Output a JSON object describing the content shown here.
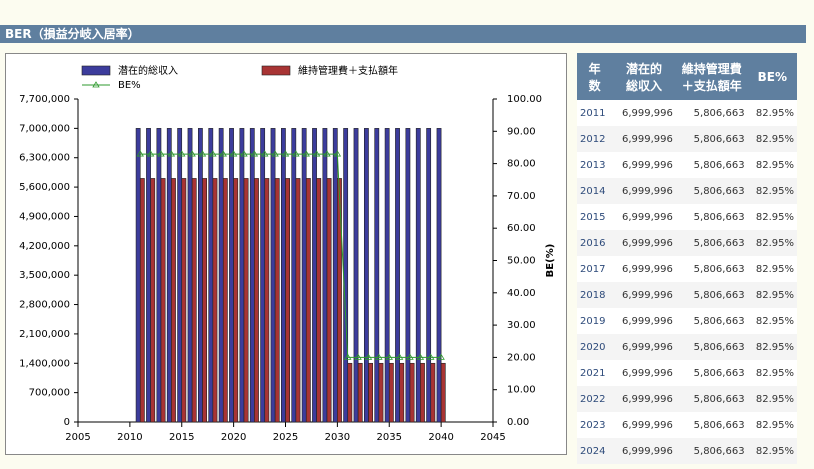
{
  "header": {
    "title": "BER（損益分岐入居率）"
  },
  "chart_data": {
    "type": "bar",
    "x": [
      2011,
      2012,
      2013,
      2014,
      2015,
      2016,
      2017,
      2018,
      2019,
      2020,
      2021,
      2022,
      2023,
      2024,
      2025,
      2026,
      2027,
      2028,
      2029,
      2030,
      2031,
      2032,
      2033,
      2034,
      2035,
      2036,
      2037,
      2038,
      2039,
      2040
    ],
    "series": [
      {
        "name": "潜在的総収入",
        "type": "bar",
        "color": "#3c3c9c",
        "values": [
          6999996,
          6999996,
          6999996,
          6999996,
          6999996,
          6999996,
          6999996,
          6999996,
          6999996,
          6999996,
          6999996,
          6999996,
          6999996,
          6999996,
          6999996,
          6999996,
          6999996,
          6999996,
          6999996,
          6999996,
          6999996,
          6999996,
          6999996,
          6999996,
          6999996,
          6999996,
          6999996,
          6999996,
          6999996,
          6999996
        ]
      },
      {
        "name": "維持管理費＋支払額年",
        "type": "bar",
        "color": "#a83434",
        "values": [
          5806663,
          5806663,
          5806663,
          5806663,
          5806663,
          5806663,
          5806663,
          5806663,
          5806663,
          5806663,
          5806663,
          5806663,
          5806663,
          5806663,
          5806663,
          5806663,
          5806663,
          5806663,
          5806663,
          5806663,
          1400000,
          1400000,
          1400000,
          1400000,
          1400000,
          1400000,
          1400000,
          1400000,
          1400000,
          1400000
        ]
      },
      {
        "name": "BE%",
        "type": "line",
        "axis": "y2",
        "color": "#2e9a2e",
        "values": [
          82.95,
          82.95,
          82.95,
          82.95,
          82.95,
          82.95,
          82.95,
          82.95,
          82.95,
          82.95,
          82.95,
          82.95,
          82.95,
          82.95,
          82.95,
          82.95,
          82.95,
          82.95,
          82.95,
          82.95,
          20,
          20,
          20,
          20,
          20,
          20,
          20,
          20,
          20,
          20
        ]
      }
    ],
    "xlim": [
      2005,
      2045
    ],
    "xticks": [
      2005,
      2010,
      2015,
      2020,
      2025,
      2030,
      2035,
      2040,
      2045
    ],
    "ylim": [
      0,
      7700000
    ],
    "yticks": [
      0,
      {
        "value": 700000,
        "label": "700,000"
      },
      {
        "value": 1400000,
        "label": "1,400,000"
      },
      {
        "value": 2100000,
        "label": "2,100,000"
      },
      {
        "value": 2800000,
        "label": "2,800,000"
      },
      {
        "value": 3500000,
        "label": "3,500,000"
      },
      {
        "value": 4200000,
        "label": "4,200,000"
      },
      {
        "value": 4900000,
        "label": "4,900,000"
      },
      {
        "value": 5600000,
        "label": "5,600,000"
      },
      {
        "value": 6300000,
        "label": "6,300,000"
      },
      {
        "value": 7000000,
        "label": "7,000,000"
      },
      {
        "value": 7700000,
        "label": "7,700,000"
      }
    ],
    "y2lim": [
      0,
      100
    ],
    "y2ticks": [
      {
        "value": 0,
        "label": "0.00"
      },
      {
        "value": 10,
        "label": "10.00"
      },
      {
        "value": 20,
        "label": "20.00"
      },
      {
        "value": 30,
        "label": "30.00"
      },
      {
        "value": 40,
        "label": "40.00"
      },
      {
        "value": 50,
        "label": "50.00"
      },
      {
        "value": 60,
        "label": "60.00"
      },
      {
        "value": 70,
        "label": "70.00"
      },
      {
        "value": 80,
        "label": "80.00"
      },
      {
        "value": 90,
        "label": "90.00"
      },
      {
        "value": 100,
        "label": "100.00"
      }
    ],
    "y2label": "BE(%)"
  },
  "table": {
    "header": [
      "年\n数",
      "潜在的\n総収入",
      "維持管理費\n＋支払額年",
      "BE%"
    ],
    "rows": [
      [
        "2011",
        "6,999,996",
        "5,806,663",
        "82.95%"
      ],
      [
        "2012",
        "6,999,996",
        "5,806,663",
        "82.95%"
      ],
      [
        "2013",
        "6,999,996",
        "5,806,663",
        "82.95%"
      ],
      [
        "2014",
        "6,999,996",
        "5,806,663",
        "82.95%"
      ],
      [
        "2015",
        "6,999,996",
        "5,806,663",
        "82.95%"
      ],
      [
        "2016",
        "6,999,996",
        "5,806,663",
        "82.95%"
      ],
      [
        "2017",
        "6,999,996",
        "5,806,663",
        "82.95%"
      ],
      [
        "2018",
        "6,999,996",
        "5,806,663",
        "82.95%"
      ],
      [
        "2019",
        "6,999,996",
        "5,806,663",
        "82.95%"
      ],
      [
        "2020",
        "6,999,996",
        "5,806,663",
        "82.95%"
      ],
      [
        "2021",
        "6,999,996",
        "5,806,663",
        "82.95%"
      ],
      [
        "2022",
        "6,999,996",
        "5,806,663",
        "82.95%"
      ],
      [
        "2023",
        "6,999,996",
        "5,806,663",
        "82.95%"
      ],
      [
        "2024",
        "6,999,996",
        "5,806,663",
        "82.95%"
      ]
    ]
  }
}
